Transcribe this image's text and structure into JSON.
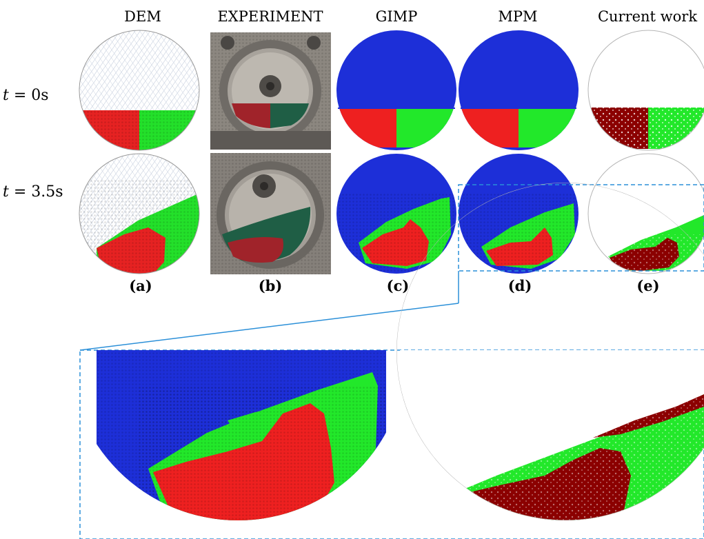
{
  "columns": [
    {
      "header": "DEM",
      "label": "(a)"
    },
    {
      "header": "EXPERIMENT",
      "label": "(b)"
    },
    {
      "header": "GIMP",
      "label": "(c)"
    },
    {
      "header": "MPM",
      "label": "(d)"
    },
    {
      "header": "Current work",
      "label": "(e)"
    }
  ],
  "rows": [
    {
      "var": "t",
      "eq": " = ",
      "value": "0",
      "unit": "s"
    },
    {
      "var": "t",
      "eq": " = ",
      "value": "3.5",
      "unit": "s"
    }
  ],
  "colors": {
    "blue": "#1d2fd8",
    "red": "#ee2020",
    "green": "#22e82a",
    "dark_red": "#8b0000",
    "bead_green": "#1f5e45",
    "steel": "#8c8780",
    "dashed": "#2a8fd8"
  }
}
